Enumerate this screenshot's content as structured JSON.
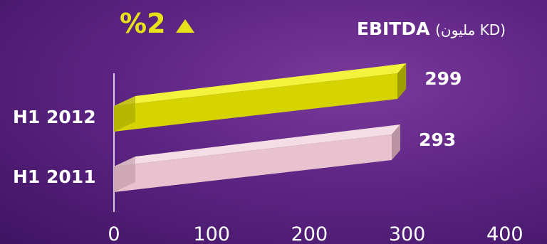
{
  "header": {
    "change_text": "%2",
    "change_icon": "triangle-up-icon",
    "title_main": "EBITDA",
    "title_unit": "(مليون KD)"
  },
  "colors": {
    "bar_2012": "#d6d400",
    "bar_2011": "#e8c2cf",
    "accent": "#e6e21a",
    "text": "#ffffff"
  },
  "chart_data": {
    "type": "bar",
    "orientation": "horizontal",
    "style": "3d",
    "categories": [
      "H1 2012",
      "H1 2011"
    ],
    "values": [
      299,
      293
    ],
    "data_labels": [
      "299",
      "293"
    ],
    "xlim": [
      0,
      400
    ],
    "xticks": [
      0,
      100,
      200,
      300,
      400
    ],
    "xtick_labels": [
      "0",
      "100",
      "200",
      "300",
      "400"
    ],
    "grid": false
  }
}
